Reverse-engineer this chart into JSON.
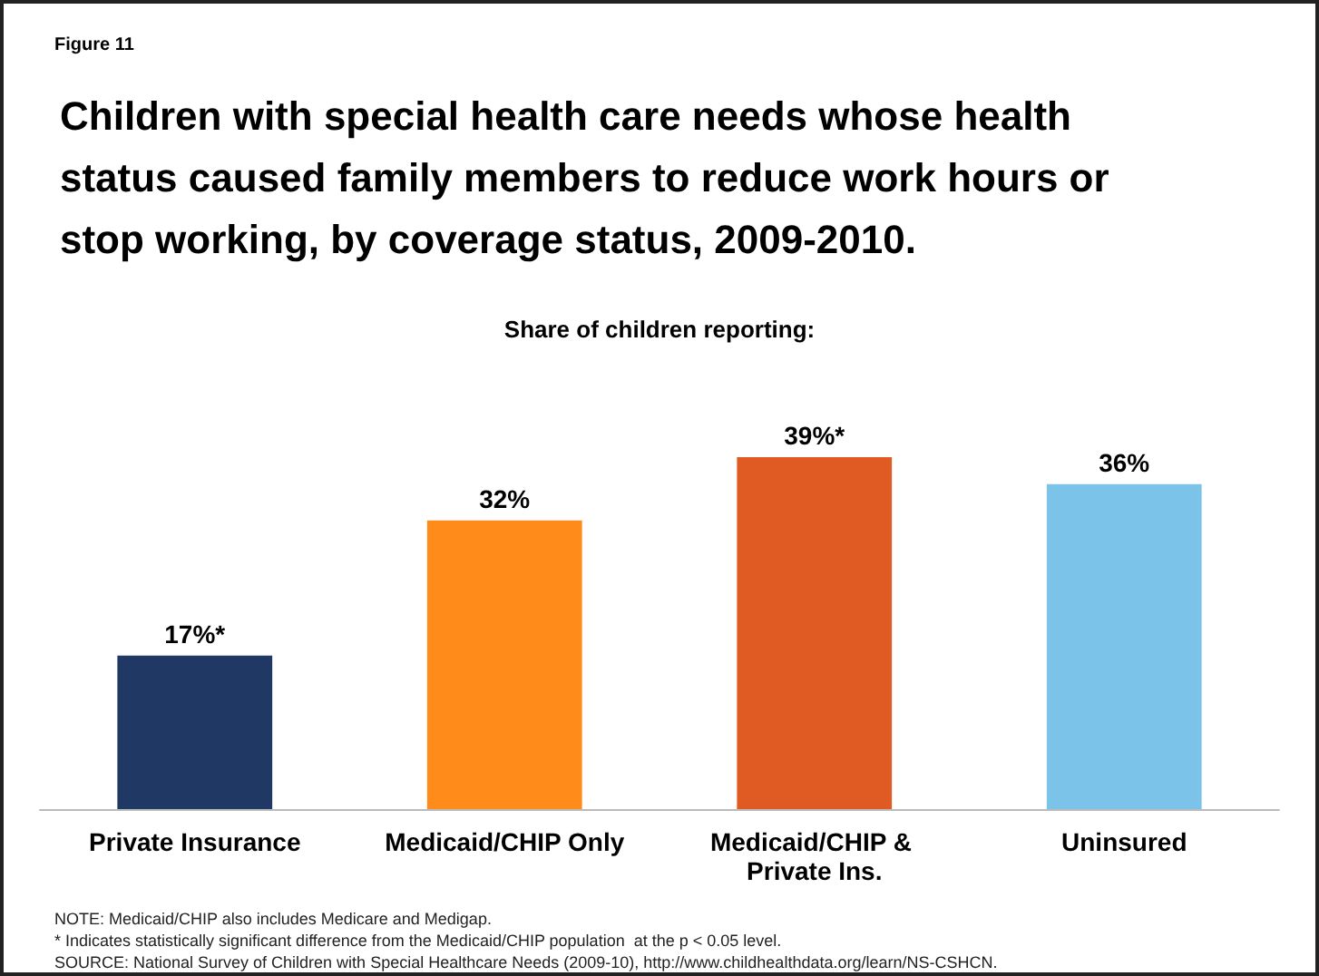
{
  "chart_data": {
    "type": "bar",
    "title": "Children with special health care needs whose health status caused family members to reduce work hours or stop working, by coverage status, 2009-2010.",
    "subtitle": "Share of children reporting:",
    "categories": [
      "Private Insurance",
      "Medicaid/CHIP Only",
      "Medicaid/CHIP & Private Ins.",
      "Uninsured"
    ],
    "values": [
      17,
      32,
      39,
      36
    ],
    "colors": [
      "#1f3864",
      "#ff8c1a",
      "#e05a24",
      "#7cc3ea"
    ],
    "value_labels": [
      "17%*",
      "32%",
      "39%*",
      "36%"
    ],
    "annotations": [
      "Figure 11",
      "NOTE: Medicaid/CHIP also includes Medicare and Medigap.",
      "* Indicates statistically significant difference from the Medicaid/CHIP population  at the p < 0.05 level.",
      "SOURCE: National Survey of Children with Special Healthcare Needs (2009-10), http://www.childhealthdata.org/learn/NS-CSHCN."
    ],
    "grid": false
  }
}
